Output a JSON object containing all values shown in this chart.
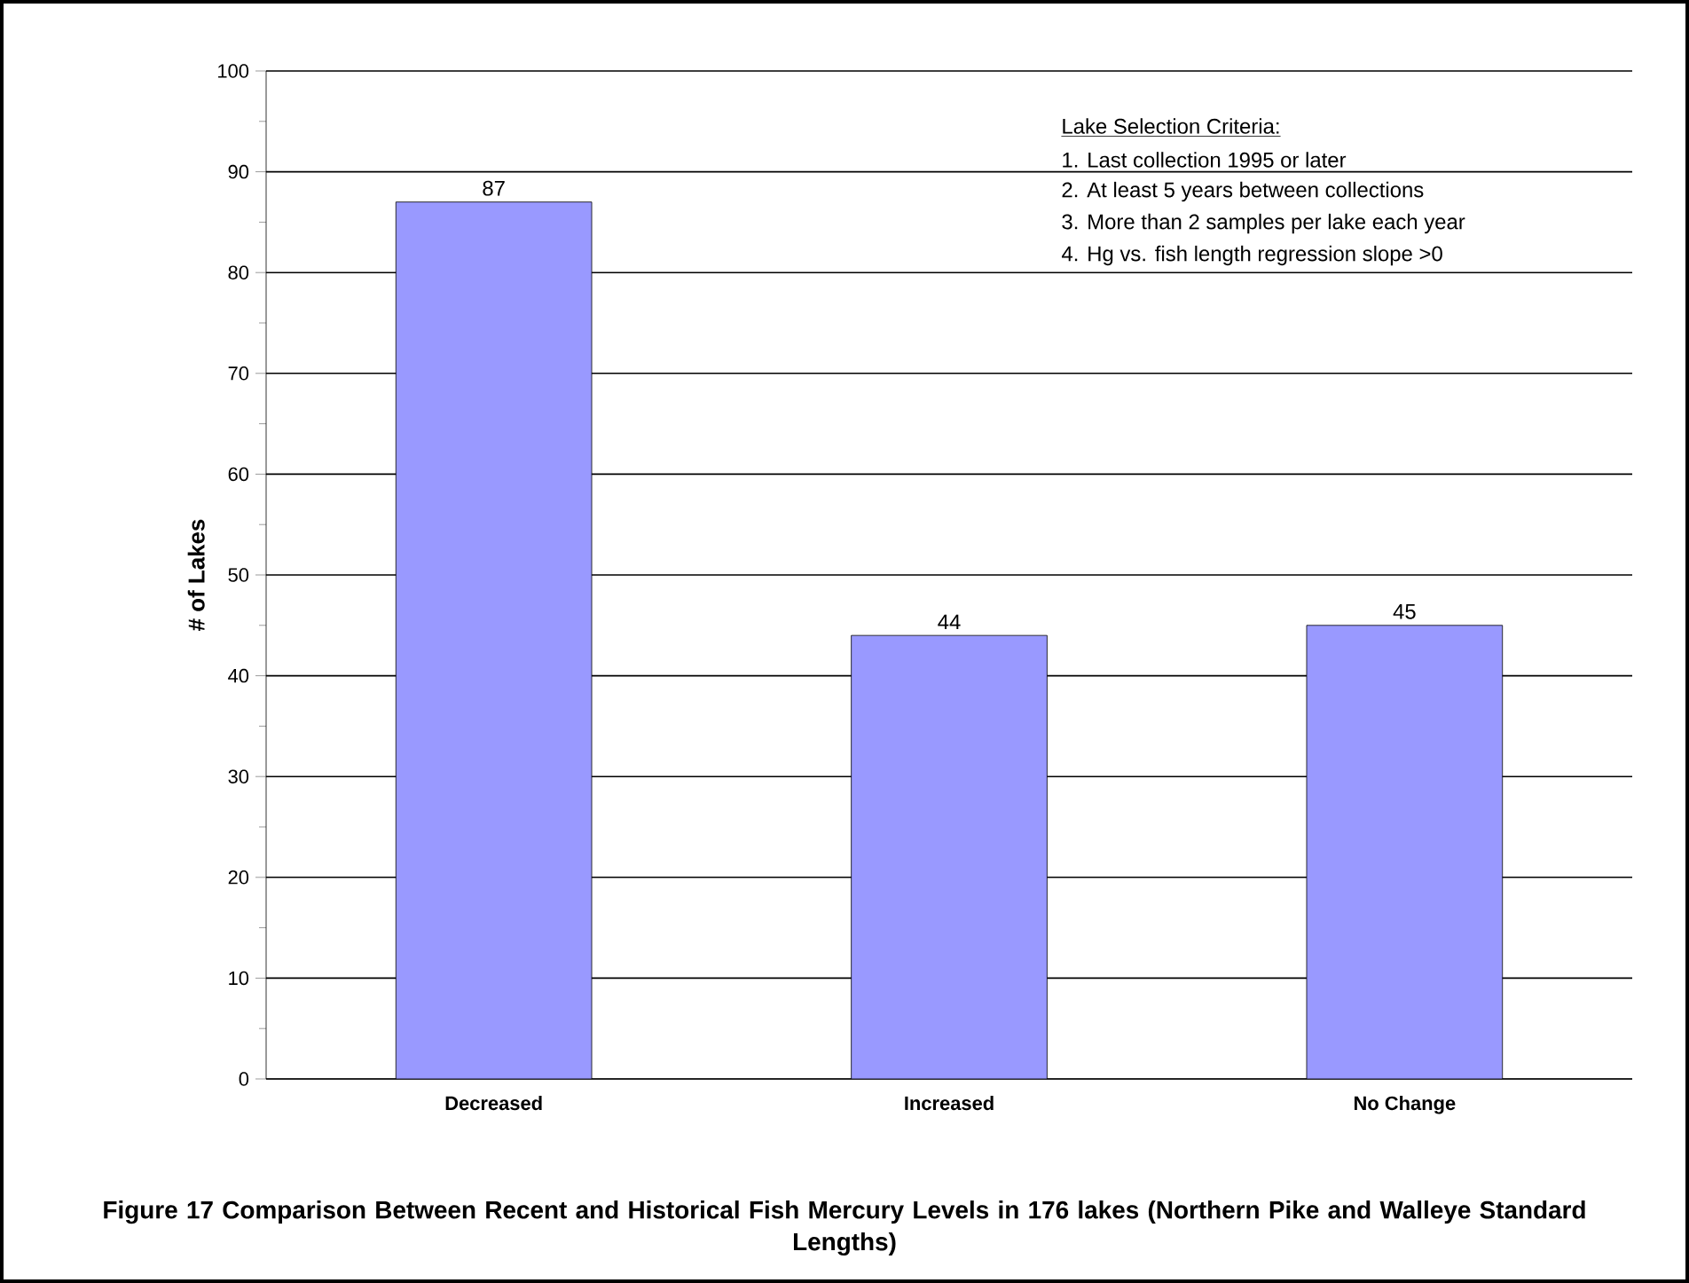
{
  "chart_data": {
    "type": "bar",
    "categories": [
      "Decreased",
      "Increased",
      "No Change"
    ],
    "values": [
      87,
      44,
      45
    ],
    "color": "#9999ff",
    "ylabel": "# of Lakes",
    "ylim": [
      0,
      100
    ],
    "yticks": [
      0,
      10,
      20,
      30,
      40,
      50,
      60,
      70,
      80,
      90,
      100
    ],
    "grid": "y",
    "data_labels": true,
    "annotations": [
      "Lake Selection Criteria:",
      "1.  Last collection 1995 or later",
      "2.  At least 5 years between collections",
      "3.  More than 2 samples per lake each year",
      "4.  Hg vs. fish length regression slope >0",
      "Figure 17  Comparison Between Recent and Historical Fish Mercury Levels in 176 lakes (Northern Pike and Walleye Standard Lengths)"
    ]
  }
}
